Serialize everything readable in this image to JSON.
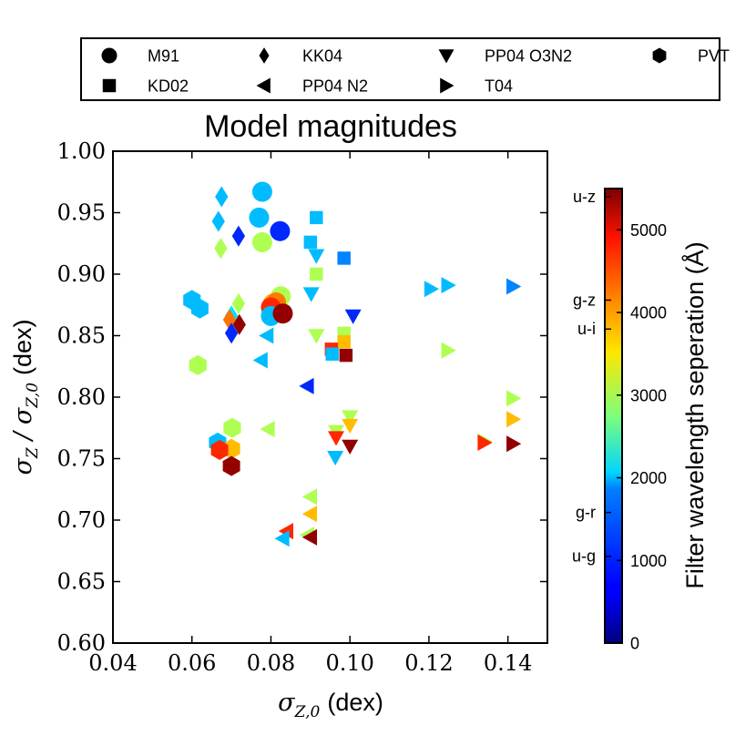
{
  "chart_data": {
    "type": "scatter",
    "title": "Model magnitudes",
    "xlabel_symbol": "σ",
    "xlabel_sub": "Z,0",
    "xlabel_unit": "(dex)",
    "ylabel_num_symbol": "σ",
    "ylabel_num_sub": "Z",
    "ylabel_sep": "/",
    "ylabel_den_symbol": "σ",
    "ylabel_den_sub": "Z,0",
    "ylabel_unit": "(dex)",
    "xlim": [
      0.04,
      0.15
    ],
    "ylim": [
      0.6,
      1.0
    ],
    "xticks": [
      "0.04",
      "0.06",
      "0.08",
      "0.10",
      "0.12",
      "0.14"
    ],
    "yticks": [
      "0.60",
      "0.65",
      "0.70",
      "0.75",
      "0.80",
      "0.85",
      "0.90",
      "0.95",
      "1.00"
    ],
    "legend": [
      {
        "label": "M91",
        "marker": "circle"
      },
      {
        "label": "KK04",
        "marker": "diamond"
      },
      {
        "label": "PP04 O3N2",
        "marker": "triangle-down"
      },
      {
        "label": "PVT",
        "marker": "hexagon"
      },
      {
        "label": "KD02",
        "marker": "square"
      },
      {
        "label": "PP04 N2",
        "marker": "triangle-left"
      },
      {
        "label": "T04",
        "marker": "triangle-right"
      }
    ],
    "colorbar": {
      "label": "Filter wavelength seperation (Å)",
      "range": [
        0,
        5500
      ],
      "ticks": [
        "0",
        "1000",
        "2000",
        "3000",
        "4000",
        "5000"
      ],
      "tick_values": [
        0,
        1000,
        2000,
        3000,
        4000,
        5000
      ],
      "filter_labels": [
        {
          "name": "u-z",
          "value": 5400
        },
        {
          "name": "g-z",
          "value": 4150
        },
        {
          "name": "u-i",
          "value": 3800
        },
        {
          "name": "g-r",
          "value": 1580
        },
        {
          "name": "u-g",
          "value": 1050
        }
      ]
    },
    "points": [
      {
        "series": "KK04",
        "x": 0.0675,
        "y": 0.963,
        "c": 1700
      },
      {
        "series": "KK04",
        "x": 0.0667,
        "y": 0.943,
        "c": 1700
      },
      {
        "series": "KK04",
        "x": 0.0673,
        "y": 0.921,
        "c": 3000
      },
      {
        "series": "KK04",
        "x": 0.0718,
        "y": 0.931,
        "c": 900
      },
      {
        "series": "KK04",
        "x": 0.0718,
        "y": 0.876,
        "c": 3000
      },
      {
        "series": "KK04",
        "x": 0.07,
        "y": 0.866,
        "c": 1900
      },
      {
        "series": "KK04",
        "x": 0.0695,
        "y": 0.863,
        "c": 4200
      },
      {
        "series": "KK04",
        "x": 0.072,
        "y": 0.859,
        "c": 5400
      },
      {
        "series": "KK04",
        "x": 0.07,
        "y": 0.852,
        "c": 900
      },
      {
        "series": "M91",
        "x": 0.0778,
        "y": 0.967,
        "c": 1700
      },
      {
        "series": "M91",
        "x": 0.077,
        "y": 0.946,
        "c": 1700
      },
      {
        "series": "M91",
        "x": 0.0823,
        "y": 0.935,
        "c": 900
      },
      {
        "series": "M91",
        "x": 0.0778,
        "y": 0.926,
        "c": 3000
      },
      {
        "series": "M91",
        "x": 0.0825,
        "y": 0.882,
        "c": 3000
      },
      {
        "series": "M91",
        "x": 0.0805,
        "y": 0.876,
        "c": 3800
      },
      {
        "series": "M91",
        "x": 0.0813,
        "y": 0.877,
        "c": 4150
      },
      {
        "series": "M91",
        "x": 0.08,
        "y": 0.873,
        "c": 4600
      },
      {
        "series": "M91",
        "x": 0.08,
        "y": 0.866,
        "c": 1700
      },
      {
        "series": "M91",
        "x": 0.083,
        "y": 0.868,
        "c": 5400
      },
      {
        "series": "KD02",
        "x": 0.0915,
        "y": 0.946,
        "c": 1700
      },
      {
        "series": "KD02",
        "x": 0.09,
        "y": 0.926,
        "c": 1700
      },
      {
        "series": "KD02",
        "x": 0.0985,
        "y": 0.913,
        "c": 1400
      },
      {
        "series": "KD02",
        "x": 0.0915,
        "y": 0.9,
        "c": 3000
      },
      {
        "series": "KD02",
        "x": 0.0985,
        "y": 0.852,
        "c": 3000
      },
      {
        "series": "KD02",
        "x": 0.0985,
        "y": 0.845,
        "c": 3800
      },
      {
        "series": "KD02",
        "x": 0.0953,
        "y": 0.839,
        "c": 4600
      },
      {
        "series": "KD02",
        "x": 0.0955,
        "y": 0.835,
        "c": 1700
      },
      {
        "series": "KD02",
        "x": 0.099,
        "y": 0.834,
        "c": 5400
      },
      {
        "series": "PP04 O3N2",
        "x": 0.0915,
        "y": 0.915,
        "c": 1700
      },
      {
        "series": "PP04 O3N2",
        "x": 0.0902,
        "y": 0.884,
        "c": 1700
      },
      {
        "series": "PP04 O3N2",
        "x": 0.1008,
        "y": 0.866,
        "c": 900
      },
      {
        "series": "PP04 O3N2",
        "x": 0.0915,
        "y": 0.85,
        "c": 3000
      },
      {
        "series": "PP04 O3N2",
        "x": 0.1,
        "y": 0.784,
        "c": 3000
      },
      {
        "series": "PP04 O3N2",
        "x": 0.0965,
        "y": 0.772,
        "c": 3000
      },
      {
        "series": "PP04 O3N2",
        "x": 0.1,
        "y": 0.777,
        "c": 3800
      },
      {
        "series": "PP04 O3N2",
        "x": 0.0965,
        "y": 0.767,
        "c": 4600
      },
      {
        "series": "PP04 O3N2",
        "x": 0.1,
        "y": 0.76,
        "c": 5400
      },
      {
        "series": "PP04 O3N2",
        "x": 0.0963,
        "y": 0.751,
        "c": 1700
      },
      {
        "series": "PP04 N2",
        "x": 0.079,
        "y": 0.85,
        "c": 1700
      },
      {
        "series": "PP04 N2",
        "x": 0.0775,
        "y": 0.83,
        "c": 1700
      },
      {
        "series": "PP04 N2",
        "x": 0.0892,
        "y": 0.809,
        "c": 900
      },
      {
        "series": "PP04 N2",
        "x": 0.0793,
        "y": 0.774,
        "c": 3000
      },
      {
        "series": "PP04 N2",
        "x": 0.09,
        "y": 0.719,
        "c": 3000
      },
      {
        "series": "PP04 N2",
        "x": 0.09,
        "y": 0.705,
        "c": 3800
      },
      {
        "series": "PP04 N2",
        "x": 0.084,
        "y": 0.691,
        "c": 4600
      },
      {
        "series": "PP04 N2",
        "x": 0.0893,
        "y": 0.688,
        "c": 3000
      },
      {
        "series": "PP04 N2",
        "x": 0.09,
        "y": 0.686,
        "c": 5400
      },
      {
        "series": "PP04 N2",
        "x": 0.083,
        "y": 0.685,
        "c": 1700
      },
      {
        "series": "T04",
        "x": 0.1248,
        "y": 0.891,
        "c": 1700
      },
      {
        "series": "T04",
        "x": 0.1205,
        "y": 0.888,
        "c": 1700
      },
      {
        "series": "T04",
        "x": 0.1413,
        "y": 0.89,
        "c": 1400
      },
      {
        "series": "T04",
        "x": 0.1248,
        "y": 0.838,
        "c": 3000
      },
      {
        "series": "T04",
        "x": 0.1413,
        "y": 0.799,
        "c": 3000
      },
      {
        "series": "T04",
        "x": 0.1413,
        "y": 0.782,
        "c": 3800
      },
      {
        "series": "T04",
        "x": 0.134,
        "y": 0.764,
        "c": 3000
      },
      {
        "series": "T04",
        "x": 0.134,
        "y": 0.763,
        "c": 4600
      },
      {
        "series": "T04",
        "x": 0.1413,
        "y": 0.762,
        "c": 5400
      },
      {
        "series": "PVT",
        "x": 0.06,
        "y": 0.879,
        "c": 1700
      },
      {
        "series": "PVT",
        "x": 0.062,
        "y": 0.872,
        "c": 1700
      },
      {
        "series": "PVT",
        "x": 0.0615,
        "y": 0.826,
        "c": 3000
      },
      {
        "series": "PVT",
        "x": 0.0702,
        "y": 0.775,
        "c": 3000
      },
      {
        "series": "PVT",
        "x": 0.0665,
        "y": 0.763,
        "c": 1700
      },
      {
        "series": "PVT",
        "x": 0.07,
        "y": 0.758,
        "c": 3800
      },
      {
        "series": "PVT",
        "x": 0.067,
        "y": 0.757,
        "c": 4600
      },
      {
        "series": "PVT",
        "x": 0.07,
        "y": 0.744,
        "c": 5400
      }
    ]
  }
}
